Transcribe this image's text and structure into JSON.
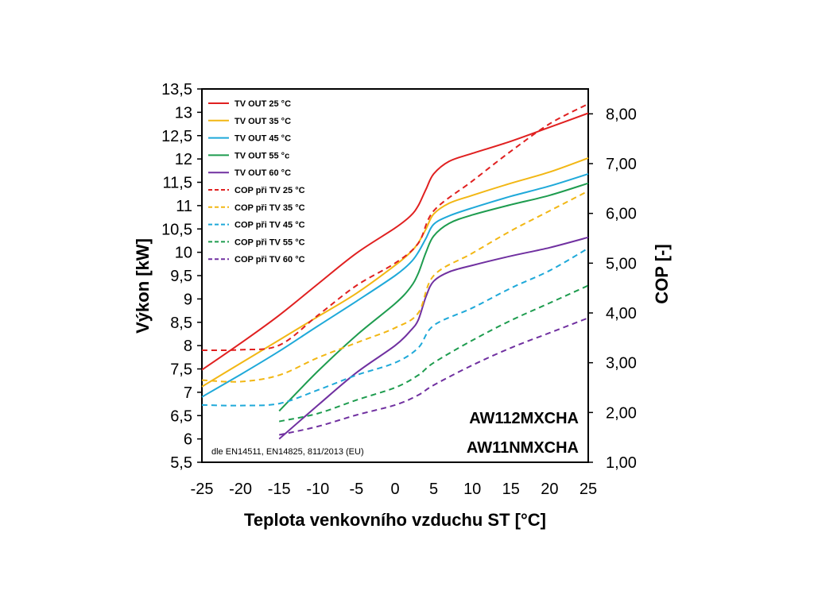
{
  "chart_data": {
    "type": "line",
    "xlabel": "Teplota venkovního vzduchu ST [°C]",
    "ylabel": "Výkon [kW]",
    "y2label": "COP [-]",
    "xlim": [
      -25,
      25
    ],
    "ylim": [
      5.5,
      13.5
    ],
    "y2lim": [
      1.0,
      8.5
    ],
    "x_ticks": [
      "-25",
      "-20",
      "-15",
      "-10",
      "-5",
      "0",
      "5",
      "10",
      "15",
      "20",
      "25"
    ],
    "x_tick_values": [
      -25,
      -20,
      -15,
      -10,
      -5,
      0,
      5,
      10,
      15,
      20,
      25
    ],
    "y_ticks": [
      "5,5",
      "6",
      "6,5",
      "7",
      "7,5",
      "8",
      "8,5",
      "9",
      "9,5",
      "10",
      "10,5",
      "11",
      "11,5",
      "12",
      "12,5",
      "13",
      "13,5"
    ],
    "y_tick_values": [
      5.5,
      6,
      6.5,
      7,
      7.5,
      8,
      8.5,
      9,
      9.5,
      10,
      10.5,
      11,
      11.5,
      12,
      12.5,
      13,
      13.5
    ],
    "y2_ticks": [
      "1,00",
      "2,00",
      "3,00",
      "4,00",
      "5,00",
      "6,00",
      "7,00",
      "8,00"
    ],
    "y2_tick_values": [
      1,
      2,
      3,
      4,
      5,
      6,
      7,
      8
    ],
    "legend_position": "top-left",
    "grid": false,
    "annotations": {
      "model_1": "AW112MXCHA",
      "model_2": "AW11NMXCHA",
      "note": "dle EN14511, EN14825, 811/2013 (EU)"
    },
    "series": [
      {
        "name": "TV OUT 25 °C",
        "axis": "left",
        "style": "solid",
        "color": "#e02020",
        "x": [
          -25,
          -20,
          -15,
          -10,
          -5,
          0,
          2,
          3,
          4,
          5,
          7,
          10,
          15,
          20,
          25
        ],
        "y": [
          7.48,
          8.05,
          8.65,
          9.32,
          9.98,
          10.52,
          10.78,
          11.0,
          11.35,
          11.68,
          11.95,
          12.12,
          12.38,
          12.68,
          12.98
        ]
      },
      {
        "name": "TV OUT 35 °C",
        "axis": "left",
        "style": "solid",
        "color": "#f2b714",
        "x": [
          -25,
          -20,
          -15,
          -10,
          -5,
          0,
          2,
          3,
          4,
          5,
          7,
          10,
          15,
          20,
          25
        ],
        "y": [
          7.12,
          7.62,
          8.12,
          8.62,
          9.12,
          9.72,
          10.0,
          10.2,
          10.5,
          10.82,
          11.05,
          11.22,
          11.48,
          11.72,
          12.02
        ]
      },
      {
        "name": "TV OUT 45 °C",
        "axis": "left",
        "style": "solid",
        "color": "#1fa9d9",
        "x": [
          -25,
          -20,
          -15,
          -10,
          -5,
          0,
          2,
          3,
          4,
          5,
          7,
          10,
          15,
          20,
          25
        ],
        "y": [
          6.9,
          7.38,
          7.88,
          8.42,
          8.95,
          9.5,
          9.78,
          10.0,
          10.3,
          10.6,
          10.78,
          10.95,
          11.2,
          11.42,
          11.68
        ]
      },
      {
        "name": "TV OUT 55 °c",
        "axis": "left",
        "style": "solid",
        "color": "#1e9c4f",
        "x": [
          -15,
          -10,
          -5,
          0,
          2,
          3,
          4,
          5,
          7,
          10,
          15,
          20,
          25
        ],
        "y": [
          6.6,
          7.45,
          8.22,
          8.9,
          9.25,
          9.55,
          10.0,
          10.35,
          10.62,
          10.8,
          11.02,
          11.22,
          11.48
        ]
      },
      {
        "name": "TV OUT 60 °C",
        "axis": "left",
        "style": "solid",
        "color": "#7030a0",
        "x": [
          -15,
          -10,
          -5,
          0,
          2,
          3,
          4,
          5,
          7,
          10,
          15,
          20,
          25
        ],
        "y": [
          6.0,
          6.72,
          7.42,
          8.0,
          8.32,
          8.55,
          9.05,
          9.38,
          9.58,
          9.72,
          9.92,
          10.1,
          10.32
        ]
      },
      {
        "name": "COP při TV 25 °C",
        "axis": "right",
        "style": "dashed",
        "color": "#e02020",
        "x": [
          -25,
          -20,
          -15,
          -10,
          -5,
          0,
          3,
          5,
          10,
          15,
          20,
          25
        ],
        "y": [
          3.25,
          3.26,
          3.35,
          3.95,
          4.55,
          5.0,
          5.4,
          6.05,
          6.65,
          7.25,
          7.8,
          8.2
        ]
      },
      {
        "name": "COP při TV 35 °C",
        "axis": "right",
        "style": "dashed",
        "color": "#f2b714",
        "x": [
          -25,
          -20,
          -15,
          -10,
          -5,
          0,
          3,
          5,
          10,
          15,
          20,
          25
        ],
        "y": [
          2.65,
          2.62,
          2.75,
          3.1,
          3.4,
          3.7,
          4.0,
          4.75,
          5.2,
          5.65,
          6.05,
          6.45
        ]
      },
      {
        "name": "COP při TV 45 °C",
        "axis": "right",
        "style": "dashed",
        "color": "#1fa9d9",
        "x": [
          -25,
          -20,
          -15,
          -10,
          -5,
          0,
          3,
          5,
          10,
          15,
          20,
          25
        ],
        "y": [
          2.15,
          2.14,
          2.18,
          2.45,
          2.75,
          3.0,
          3.3,
          3.75,
          4.1,
          4.5,
          4.85,
          5.3
        ]
      },
      {
        "name": "COP při TV 55 °C",
        "axis": "right",
        "style": "dashed",
        "color": "#1e9c4f",
        "x": [
          -15,
          -10,
          -5,
          0,
          3,
          5,
          10,
          15,
          20,
          25
        ],
        "y": [
          1.82,
          1.98,
          2.25,
          2.5,
          2.75,
          3.0,
          3.45,
          3.85,
          4.2,
          4.55
        ]
      },
      {
        "name": "COP při TV 60 °C",
        "axis": "right",
        "style": "dashed",
        "color": "#7030a0",
        "x": [
          -15,
          -10,
          -5,
          0,
          3,
          5,
          10,
          15,
          20,
          25
        ],
        "y": [
          1.55,
          1.72,
          1.95,
          2.15,
          2.35,
          2.55,
          2.95,
          3.3,
          3.6,
          3.9
        ]
      }
    ]
  }
}
